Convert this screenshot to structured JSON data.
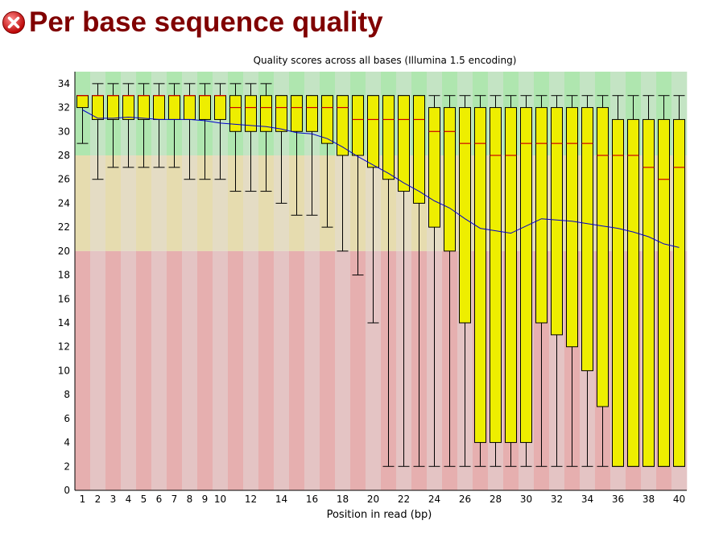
{
  "header": {
    "title": "Per base sequence quality",
    "status_icon": "fail-icon",
    "status_color": "#d81c1c"
  },
  "chart_data": {
    "type": "box",
    "title": "Quality scores across all bases (Illumina 1.5 encoding)",
    "xlabel": "Position in read (bp)",
    "ylabel": "",
    "ylim": [
      0,
      35
    ],
    "yticks": [
      0,
      2,
      4,
      6,
      8,
      10,
      12,
      14,
      16,
      18,
      20,
      22,
      24,
      26,
      28,
      30,
      32,
      34
    ],
    "xtick_labels": [
      "1",
      "2",
      "3",
      "4",
      "5",
      "6",
      "7",
      "8",
      "9",
      "10",
      "12",
      "14",
      "16",
      "18",
      "20",
      "22",
      "24",
      "26",
      "28",
      "30",
      "32",
      "34",
      "36",
      "38",
      "40"
    ],
    "quality_bands": [
      {
        "name": "good",
        "from": 28,
        "to": 35,
        "color_even": "#afe6af",
        "color_odd": "#c4e4c4"
      },
      {
        "name": "reasonable",
        "from": 20,
        "to": 28,
        "color_even": "#e6dcaf",
        "color_odd": "#e4dcc4"
      },
      {
        "name": "poor",
        "from": 0,
        "to": 20,
        "color_even": "#e6afaf",
        "color_odd": "#e4c4c4"
      }
    ],
    "colors": {
      "box": "#eeee00",
      "median": "#cc0000",
      "mean_line": "#0000cc",
      "whisker": "#000000"
    },
    "series": [
      {
        "name": "box",
        "positions": [
          1,
          2,
          3,
          4,
          5,
          6,
          7,
          8,
          9,
          10,
          11,
          12,
          13,
          14,
          15,
          16,
          17,
          18,
          19,
          20,
          21,
          22,
          23,
          24,
          25,
          26,
          27,
          28,
          29,
          30,
          31,
          32,
          33,
          34,
          35,
          36,
          37,
          38,
          39,
          40
        ],
        "q1": [
          32,
          31,
          31,
          31,
          31,
          31,
          31,
          31,
          31,
          31,
          30,
          30,
          30,
          30,
          30,
          30,
          29,
          28,
          28,
          27,
          26,
          25,
          24,
          22,
          20,
          14,
          4,
          4,
          4,
          4,
          14,
          13,
          12,
          10,
          7,
          2,
          2,
          2,
          2,
          2
        ],
        "median": [
          33,
          33,
          33,
          33,
          33,
          33,
          33,
          33,
          33,
          33,
          32,
          32,
          32,
          32,
          32,
          32,
          32,
          32,
          31,
          31,
          31,
          31,
          31,
          30,
          30,
          29,
          29,
          28,
          28,
          29,
          29,
          29,
          29,
          29,
          28,
          28,
          28,
          27,
          26,
          27
        ],
        "q3": [
          33,
          33,
          33,
          33,
          33,
          33,
          33,
          33,
          33,
          33,
          33,
          33,
          33,
          33,
          33,
          33,
          33,
          33,
          33,
          33,
          33,
          33,
          33,
          32,
          32,
          32,
          32,
          32,
          32,
          32,
          32,
          32,
          32,
          32,
          32,
          31,
          31,
          31,
          31,
          31
        ],
        "low": [
          29,
          26,
          27,
          27,
          27,
          27,
          27,
          26,
          26,
          26,
          25,
          25,
          25,
          24,
          23,
          23,
          22,
          20,
          18,
          14,
          2,
          2,
          2,
          2,
          2,
          2,
          2,
          2,
          2,
          2,
          2,
          2,
          2,
          2,
          2,
          2,
          2,
          2,
          2,
          2
        ],
        "high": [
          33,
          34,
          34,
          34,
          34,
          34,
          34,
          34,
          34,
          34,
          34,
          34,
          34,
          33,
          33,
          33,
          33,
          33,
          33,
          33,
          33,
          33,
          33,
          33,
          33,
          33,
          33,
          33,
          33,
          33,
          33,
          33,
          33,
          33,
          33,
          33,
          33,
          33,
          33,
          33
        ]
      },
      {
        "name": "mean",
        "positions": [
          1,
          2,
          3,
          4,
          5,
          6,
          7,
          8,
          9,
          10,
          11,
          12,
          13,
          14,
          15,
          16,
          17,
          18,
          19,
          20,
          21,
          22,
          23,
          24,
          25,
          26,
          27,
          28,
          29,
          30,
          31,
          32,
          33,
          34,
          35,
          36,
          37,
          38,
          39,
          40
        ],
        "values": [
          31.8,
          31.1,
          31.1,
          31.2,
          31.1,
          31.0,
          31.0,
          31.0,
          30.9,
          30.7,
          30.6,
          30.5,
          30.4,
          30.2,
          29.9,
          29.8,
          29.4,
          28.7,
          27.9,
          27.2,
          26.5,
          25.7,
          25.0,
          24.2,
          23.6,
          22.7,
          21.9,
          21.7,
          21.5,
          22.1,
          22.7,
          22.6,
          22.5,
          22.3,
          22.1,
          21.9,
          21.6,
          21.2,
          20.6,
          20.3
        ]
      }
    ]
  }
}
